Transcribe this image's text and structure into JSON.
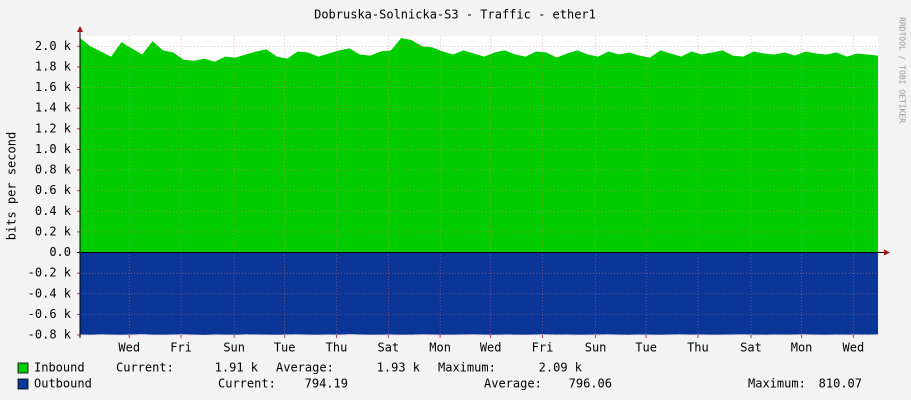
{
  "chart_data": {
    "type": "area",
    "title": "Dobruska-Solnicka-S3 - Traffic - ether1",
    "y_label": "bits per second",
    "watermark": "RRDTOOL / TOBI OETIKER",
    "x": [
      0,
      0.4,
      0.8,
      1.2,
      1.6,
      2,
      2.4,
      2.8,
      3.2,
      3.6,
      4,
      4.4,
      4.8,
      5.2,
      5.6,
      6,
      6.4,
      6.8,
      7.2,
      7.6,
      8,
      8.4,
      8.8,
      9.2,
      9.6,
      10,
      10.4,
      10.8,
      11.2,
      11.6,
      12,
      12.4,
      12.8,
      13.2,
      13.6,
      14,
      14.4,
      14.8,
      15.2,
      15.6,
      16,
      16.4,
      16.8,
      17.2,
      17.6,
      18,
      18.4,
      18.8,
      19.2,
      19.6,
      20,
      20.4,
      20.8,
      21.2,
      21.6,
      22,
      22.4,
      22.8,
      23.2,
      23.6,
      24,
      24.4,
      24.8,
      25.2,
      25.6,
      26,
      26.4,
      26.8,
      27.2,
      27.6,
      28,
      28.4,
      28.8,
      29.2,
      29.6,
      30,
      30.4,
      30.8
    ],
    "xlim": [
      0,
      30.8
    ],
    "xticks": [
      {
        "value": 1.9,
        "label": "Wed"
      },
      {
        "value": 3.9,
        "label": "Fri"
      },
      {
        "value": 5.95,
        "label": "Sun"
      },
      {
        "value": 7.9,
        "label": "Tue"
      },
      {
        "value": 9.9,
        "label": "Thu"
      },
      {
        "value": 11.9,
        "label": "Sat"
      },
      {
        "value": 13.9,
        "label": "Mon"
      },
      {
        "value": 15.85,
        "label": "Wed"
      },
      {
        "value": 17.85,
        "label": "Fri"
      },
      {
        "value": 19.9,
        "label": "Sun"
      },
      {
        "value": 21.85,
        "label": "Tue"
      },
      {
        "value": 23.85,
        "label": "Thu"
      },
      {
        "value": 25.9,
        "label": "Sat"
      },
      {
        "value": 27.85,
        "label": "Mon"
      },
      {
        "value": 29.85,
        "label": "Wed"
      }
    ],
    "ylim": [
      -800,
      2100
    ],
    "yticks": [
      {
        "value": 2000,
        "label": "2.0 k"
      },
      {
        "value": 1800,
        "label": "1.8 k"
      },
      {
        "value": 1600,
        "label": "1.6 k"
      },
      {
        "value": 1400,
        "label": "1.4 k"
      },
      {
        "value": 1200,
        "label": "1.2 k"
      },
      {
        "value": 1000,
        "label": "1.0 k"
      },
      {
        "value": 800,
        "label": "0.8 k"
      },
      {
        "value": 600,
        "label": "0.6 k"
      },
      {
        "value": 400,
        "label": "0.4 k"
      },
      {
        "value": 200,
        "label": "0.2 k"
      },
      {
        "value": 0,
        "label": "0.0"
      },
      {
        "value": -200,
        "label": "-0.2 k"
      },
      {
        "value": -400,
        "label": "-0.4 k"
      },
      {
        "value": -600,
        "label": "-0.6 k"
      },
      {
        "value": -800,
        "label": "-0.8 k"
      }
    ],
    "grid": true,
    "series": [
      {
        "name": "Inbound",
        "color": "#00cc00",
        "values": [
          2080,
          2000,
          1950,
          1900,
          2040,
          1980,
          1920,
          2050,
          1960,
          1940,
          1870,
          1860,
          1880,
          1850,
          1900,
          1890,
          1920,
          1950,
          1970,
          1900,
          1880,
          1950,
          1940,
          1900,
          1930,
          1960,
          1980,
          1920,
          1910,
          1950,
          1960,
          2080,
          2060,
          2000,
          1990,
          1950,
          1920,
          1960,
          1930,
          1900,
          1940,
          1960,
          1920,
          1900,
          1950,
          1940,
          1890,
          1930,
          1960,
          1920,
          1900,
          1950,
          1920,
          1940,
          1910,
          1890,
          1960,
          1930,
          1900,
          1950,
          1920,
          1940,
          1960,
          1910,
          1900,
          1950,
          1930,
          1920,
          1940,
          1910,
          1950,
          1930,
          1920,
          1940,
          1900,
          1930,
          1920,
          1910
        ],
        "stats": [
          {
            "label": "Current:",
            "value": "1.91 k"
          },
          {
            "label": "Average:",
            "value": "1.93 k"
          },
          {
            "label": "Maximum:",
            "value": "2.09 k"
          }
        ]
      },
      {
        "name": "Outbound",
        "color": "#0b3596",
        "values": [
          -795,
          -797,
          -794,
          -796,
          -798,
          -795,
          -793,
          -796,
          -797,
          -795,
          -794,
          -796,
          -799,
          -795,
          -796,
          -797,
          -794,
          -795,
          -796,
          -798,
          -795,
          -794,
          -796,
          -797,
          -795,
          -796,
          -793,
          -795,
          -797,
          -796,
          -795,
          -798,
          -796,
          -794,
          -795,
          -797,
          -796,
          -795,
          -794,
          -796,
          -797,
          -795,
          -796,
          -798,
          -795,
          -794,
          -796,
          -795,
          -797,
          -796,
          -795,
          -794,
          -796,
          -797,
          -795,
          -796,
          -798,
          -795,
          -794,
          -796,
          -795,
          -797,
          -796,
          -795,
          -794,
          -796,
          -797,
          -795,
          -796,
          -795,
          -794,
          -796,
          -797,
          -795,
          -796,
          -795,
          -796,
          -794
        ],
        "stats": [
          {
            "label": "Current:",
            "value": "794.19"
          },
          {
            "label": "Average:",
            "value": "796.06"
          },
          {
            "label": "Maximum:",
            "value": "810.07"
          }
        ]
      }
    ]
  }
}
